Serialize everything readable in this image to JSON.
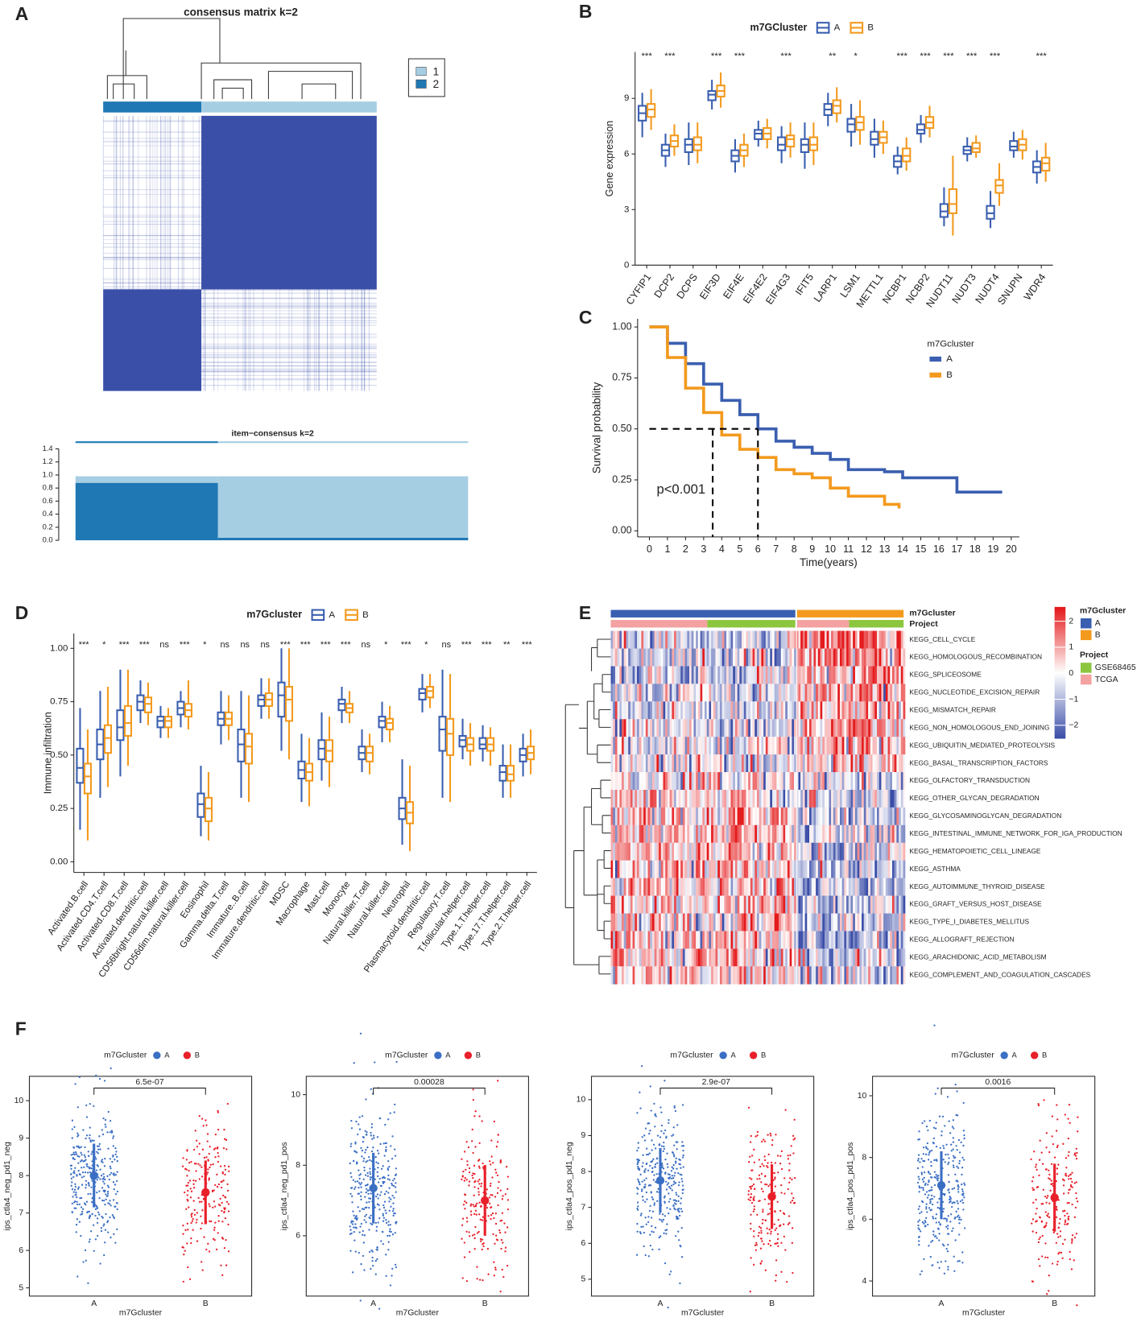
{
  "chart_data": [
    {
      "type": "consensus",
      "panel": "A",
      "title": "consensus matrix k=2",
      "legend": [
        "1",
        "2"
      ],
      "colors": [
        "#a6cee3",
        "#1f78b4"
      ],
      "fill": "#3a4fa8"
    },
    {
      "type": "stacked_bar",
      "title": "item−consensus k=2",
      "categories": [
        null,
        null
      ],
      "series": [
        {
          "color": "#1f78b4",
          "values": [
            0.88,
            0.04
          ]
        },
        {
          "color": "#a6cee3",
          "values": [
            0.1,
            0.94
          ]
        }
      ],
      "ylim": [
        0,
        1.4
      ],
      "yticks": [
        {
          "value": 0,
          "label": "0.0"
        },
        0.2,
        0.4,
        0.6,
        0.8,
        {
          "value": 1,
          "label": "1.0"
        },
        1.2,
        1.4
      ]
    },
    {
      "type": "box",
      "panel": "B",
      "legend_title": "m7GCluster",
      "ylabel": "Gene expression",
      "categories": [
        "CYFIP1",
        "DCP2",
        "DCPS",
        "EIF3D",
        "EIF4E",
        "EIF4E2",
        "EIF4G3",
        "IFIT5",
        "LARP1",
        "LSM1",
        "METTL1",
        "NCBP1",
        "NCBP2",
        "NUDT11",
        "NUDT3",
        "NUDT4",
        "SNUPN",
        "WDR4"
      ],
      "significance": [
        "***",
        "***",
        null,
        "***",
        "***",
        null,
        "***",
        null,
        "**",
        "*",
        null,
        "***",
        "***",
        "***",
        "***",
        "***",
        null,
        "***"
      ],
      "ylim": [
        0,
        11.5
      ],
      "yticks": [
        0,
        3,
        6,
        9
      ],
      "series": [
        {
          "name": "A",
          "color": "#3a5fb0",
          "low": [
            6.9,
            5.3,
            5.4,
            8.4,
            5.0,
            6.4,
            5.5,
            5.2,
            7.5,
            6.4,
            5.8,
            4.9,
            6.6,
            2.1,
            5.6,
            2.0,
            5.8,
            4.4
          ],
          "q1": [
            7.8,
            5.9,
            6.1,
            8.9,
            5.6,
            6.8,
            6.2,
            6.1,
            8.1,
            7.2,
            6.5,
            5.3,
            7.1,
            2.6,
            6.0,
            2.5,
            6.2,
            5.0
          ],
          "median": [
            8.2,
            6.2,
            6.5,
            9.2,
            5.9,
            7.1,
            6.5,
            6.5,
            8.4,
            7.6,
            6.8,
            5.6,
            7.3,
            2.9,
            6.2,
            2.8,
            6.4,
            5.3
          ],
          "q3": [
            8.6,
            6.5,
            6.8,
            9.4,
            6.2,
            7.3,
            6.9,
            6.8,
            8.7,
            7.9,
            7.2,
            5.9,
            7.6,
            3.3,
            6.4,
            3.2,
            6.7,
            5.6
          ],
          "high": [
            9.3,
            7.1,
            7.7,
            10.0,
            6.8,
            7.8,
            7.5,
            7.7,
            9.3,
            8.7,
            7.9,
            6.4,
            8.1,
            4.2,
            6.9,
            4.0,
            7.2,
            6.2
          ]
        },
        {
          "name": "B",
          "color": "#f39a1e",
          "low": [
            7.3,
            5.9,
            5.5,
            8.5,
            5.3,
            6.3,
            5.8,
            5.4,
            7.7,
            6.5,
            6.0,
            5.1,
            6.9,
            1.6,
            5.8,
            3.2,
            5.7,
            4.5
          ],
          "q1": [
            8.0,
            6.4,
            6.2,
            9.1,
            5.9,
            6.8,
            6.4,
            6.2,
            8.2,
            7.3,
            6.6,
            5.6,
            7.4,
            2.8,
            6.1,
            3.9,
            6.2,
            5.1
          ],
          "median": [
            8.4,
            6.7,
            6.5,
            9.4,
            6.2,
            7.1,
            6.8,
            6.5,
            8.6,
            7.7,
            6.9,
            5.9,
            7.7,
            3.3,
            6.3,
            4.3,
            6.5,
            5.5
          ],
          "q3": [
            8.7,
            7.0,
            6.9,
            9.7,
            6.5,
            7.4,
            7.0,
            6.9,
            8.9,
            8.0,
            7.2,
            6.3,
            8.0,
            4.1,
            6.6,
            4.6,
            6.8,
            5.8
          ],
          "high": [
            9.5,
            7.6,
            7.7,
            10.4,
            7.1,
            7.9,
            7.7,
            7.7,
            9.6,
            8.9,
            7.8,
            6.9,
            8.6,
            5.9,
            7.0,
            5.5,
            7.3,
            6.6
          ]
        }
      ]
    },
    {
      "type": "survival",
      "panel": "C",
      "xlabel": "Time(years)",
      "ylabel": "Survival probability",
      "legend_title": "m7Gcluster",
      "annotation": "p<0.001",
      "xlim": [
        -0.65,
        20.45
      ],
      "xticks": [
        0,
        1,
        2,
        3,
        4,
        5,
        6,
        7,
        8,
        9,
        10,
        11,
        12,
        13,
        14,
        15,
        16,
        17,
        18,
        19,
        20
      ],
      "ylim": [
        -0.03,
        1.04
      ],
      "yticks": [
        {
          "value": 0,
          "label": "0.00"
        },
        0.25,
        {
          "value": 0.5,
          "label": "0.50"
        },
        0.75,
        {
          "value": 1,
          "label": "1.00"
        }
      ],
      "median_survival": {
        "y": 0.5,
        "x": [
          3.5,
          6
        ]
      },
      "series": [
        {
          "name": "A",
          "color": "#3a5fb0",
          "x": [
            0,
            1,
            2,
            3,
            4,
            5,
            6,
            7,
            8,
            9,
            10,
            11,
            12,
            13,
            14,
            15,
            16,
            17,
            18,
            19,
            19.5
          ],
          "values": [
            1,
            0.92,
            0.82,
            0.72,
            0.64,
            0.57,
            0.5,
            0.44,
            0.41,
            0.38,
            0.35,
            0.3,
            0.3,
            0.29,
            0.26,
            0.26,
            0.26,
            0.19,
            0.19,
            0.19,
            0.19
          ]
        },
        {
          "name": "B",
          "color": "#f39a1e",
          "x": [
            0,
            1,
            2,
            3,
            4,
            5,
            6,
            7,
            8,
            9,
            10,
            11,
            12,
            13,
            13.8
          ],
          "values": [
            1,
            0.85,
            0.7,
            0.58,
            0.47,
            0.4,
            0.36,
            0.3,
            0.28,
            0.26,
            0.21,
            0.17,
            0.17,
            0.13,
            0.11
          ]
        }
      ]
    },
    {
      "type": "box",
      "panel": "D",
      "legend_title": "m7Gcluster",
      "ylabel": "Immune infiltration",
      "categories": [
        "Activated.B.cell",
        "Activated.CD4.T.cell",
        "Activated.CD8.T.cell",
        "Activated.dendritic.cell",
        "CD56bright.natural.killer.cell",
        "CD56dim.natural.killer.cell",
        "Eosinophil",
        "Gamma.delta.T.cell",
        "Immature..B.cell",
        "Immature.dendritic.cell",
        "MDSC",
        "Macrophage",
        "Mast.cell",
        "Monocyte",
        "Natural.killer.T.cell",
        "Natural.killer.cell",
        "Neutrophil",
        "Plasmacytoid.dendritic.cell",
        "Regulatory.T.cell",
        "T.follicular.helper.cell",
        "Type.1.T.helper.cell",
        "Type.17.T.helper.cell",
        "Type.2.T.helper.cell"
      ],
      "significance": [
        "***",
        "*",
        "***",
        "***",
        "ns",
        "***",
        "*",
        "ns",
        "ns",
        "ns",
        "***",
        "***",
        "***",
        "***",
        "ns",
        "*",
        "***",
        "*",
        "ns",
        "***",
        "***",
        "**",
        "***"
      ],
      "ylim": [
        -0.05,
        1.07
      ],
      "yticks": [
        {
          "value": 0,
          "label": "0.00"
        },
        0.25,
        {
          "value": 0.5,
          "label": "0.50"
        },
        0.75,
        {
          "value": 1,
          "label": "1.00"
        }
      ],
      "series": [
        {
          "name": "A",
          "color": "#3a5fb0",
          "low": [
            0.15,
            0.3,
            0.4,
            0.65,
            0.58,
            0.63,
            0.12,
            0.55,
            0.3,
            0.67,
            0.52,
            0.28,
            0.38,
            0.65,
            0.42,
            0.56,
            0.08,
            0.7,
            0.3,
            0.48,
            0.47,
            0.3,
            0.4
          ],
          "q1": [
            0.37,
            0.48,
            0.57,
            0.71,
            0.63,
            0.69,
            0.21,
            0.64,
            0.47,
            0.73,
            0.68,
            0.39,
            0.48,
            0.71,
            0.48,
            0.63,
            0.2,
            0.76,
            0.52,
            0.54,
            0.53,
            0.38,
            0.47
          ],
          "median": [
            0.44,
            0.55,
            0.63,
            0.75,
            0.66,
            0.72,
            0.27,
            0.67,
            0.55,
            0.76,
            0.78,
            0.43,
            0.53,
            0.74,
            0.51,
            0.66,
            0.25,
            0.79,
            0.62,
            0.57,
            0.55,
            0.42,
            0.5
          ],
          "q3": [
            0.53,
            0.62,
            0.71,
            0.78,
            0.68,
            0.75,
            0.32,
            0.7,
            0.62,
            0.78,
            0.84,
            0.47,
            0.57,
            0.76,
            0.54,
            0.68,
            0.3,
            0.81,
            0.68,
            0.59,
            0.58,
            0.45,
            0.53
          ],
          "high": [
            0.72,
            0.8,
            0.9,
            0.85,
            0.73,
            0.8,
            0.45,
            0.8,
            0.8,
            0.86,
            1.0,
            0.6,
            0.7,
            0.82,
            0.62,
            0.75,
            0.48,
            0.88,
            0.9,
            0.67,
            0.64,
            0.55,
            0.6
          ]
        },
        {
          "name": "B",
          "color": "#f39a1e",
          "low": [
            0.1,
            0.35,
            0.45,
            0.64,
            0.58,
            0.62,
            0.1,
            0.57,
            0.28,
            0.67,
            0.48,
            0.26,
            0.35,
            0.65,
            0.41,
            0.56,
            0.05,
            0.72,
            0.28,
            0.45,
            0.45,
            0.3,
            0.41
          ],
          "q1": [
            0.32,
            0.51,
            0.59,
            0.7,
            0.63,
            0.68,
            0.19,
            0.64,
            0.46,
            0.73,
            0.66,
            0.38,
            0.47,
            0.7,
            0.47,
            0.62,
            0.18,
            0.77,
            0.5,
            0.52,
            0.52,
            0.38,
            0.48
          ],
          "median": [
            0.4,
            0.58,
            0.65,
            0.74,
            0.66,
            0.71,
            0.25,
            0.67,
            0.54,
            0.76,
            0.76,
            0.42,
            0.52,
            0.72,
            0.51,
            0.65,
            0.23,
            0.8,
            0.6,
            0.55,
            0.55,
            0.41,
            0.51
          ],
          "q3": [
            0.46,
            0.64,
            0.73,
            0.77,
            0.68,
            0.74,
            0.3,
            0.7,
            0.6,
            0.79,
            0.82,
            0.46,
            0.57,
            0.74,
            0.54,
            0.67,
            0.28,
            0.82,
            0.67,
            0.58,
            0.58,
            0.45,
            0.54
          ],
          "high": [
            0.62,
            0.82,
            0.9,
            0.84,
            0.72,
            0.85,
            0.42,
            0.78,
            0.78,
            0.86,
            1.0,
            0.58,
            0.68,
            0.8,
            0.6,
            0.73,
            0.45,
            0.88,
            0.88,
            0.65,
            0.63,
            0.55,
            0.62
          ]
        }
      ]
    },
    {
      "type": "heatmap",
      "panel": "E",
      "row_labels": [
        "KEGG_CELL_CYCLE",
        "KEGG_HOMOLOGOUS_RECOMBINATION",
        "KEGG_SPLICEOSOME",
        "KEGG_NUCLEOTIDE_EXCISION_REPAIR",
        "KEGG_MISMATCH_REPAIR",
        "KEGG_NON_HOMOLOGOUS_END_JOINING",
        "KEGG_UBIQUITIN_MEDIATED_PROTEOLYSIS",
        "KEGG_BASAL_TRANSCRIPTION_FACTORS",
        "KEGG_OLFACTORY_TRANSDUCTION",
        "KEGG_OTHER_GLYCAN_DEGRADATION",
        "KEGG_GLYCOSAMINOGLYCAN_DEGRADATION",
        "KEGG_INTESTINAL_IMMUNE_NETWORK_FOR_IGA_PRODUCTION",
        "KEGG_HEMATOPOIETIC_CELL_LINEAGE",
        "KEGG_ASTHMA",
        "KEGG_AUTOIMMUNE_THYROID_DISEASE",
        "KEGG_GRAFT_VERSUS_HOST_DISEASE",
        "KEGG_TYPE_I_DIABETES_MELLITUS",
        "KEGG_ALLOGRAFT_REJECTION",
        "KEGG_ARACHIDONIC_ACID_METABOLISM",
        "KEGG_COMPLEMENT_AND_COAGULATION_CASCADES"
      ],
      "annotation_labels": [
        "m7Gcluster",
        "Project"
      ],
      "values": [
        [
          -0.5,
          1.4
        ],
        [
          -0.4,
          0.9
        ],
        [
          -0.4,
          0.8
        ],
        [
          -0.4,
          0.8
        ],
        [
          -0.4,
          0.8
        ],
        [
          -0.4,
          0.8
        ],
        [
          -0.3,
          0.7
        ],
        [
          -0.3,
          0.7
        ],
        [
          0.3,
          -0.3
        ],
        [
          0.4,
          -0.5
        ],
        [
          0.5,
          -0.6
        ],
        [
          0.6,
          -0.7
        ],
        [
          0.6,
          -0.7
        ],
        [
          0.5,
          -0.6
        ],
        [
          0.6,
          -0.7
        ],
        [
          0.6,
          -0.7
        ],
        [
          0.5,
          -0.6
        ],
        [
          0.6,
          -0.7
        ],
        [
          0.5,
          -0.6
        ],
        [
          0.5,
          -0.6
        ]
      ],
      "scale": {
        "lim": [
          -2.5,
          2.5
        ],
        "ticks": [
          2,
          1,
          0,
          {
            "value": -1,
            "label": "−1"
          },
          {
            "value": -2,
            "label": "−2"
          }
        ],
        "colors": [
          "#3b4ea8",
          "#ffffff",
          "#e41a1c"
        ]
      },
      "cluster_legend": {
        "title": "m7Gcluster",
        "labels": [
          "A",
          "B"
        ],
        "colors": [
          "#3a5fb0",
          "#f39a1e"
        ]
      },
      "project_legend": {
        "title": "Project",
        "labels": [
          "GSE68465",
          "TCGA"
        ],
        "colors": [
          "#8cc63f",
          "#f4a1a1"
        ]
      }
    },
    {
      "type": "strip",
      "panel": "F",
      "legend_title": "m7Gcluster",
      "xlabel": "m7Gcluster",
      "ylabel": "ips_ctla4_neg_pd1_neg",
      "p_label": "6.5e-07",
      "categories": [
        "A",
        "B"
      ],
      "colors": [
        "#3b6fc4",
        "#e8202a"
      ],
      "values": [
        8.0,
        7.55
      ],
      "errors": [
        0.85,
        0.85
      ],
      "ylim": [
        4.78,
        10.65
      ],
      "yticks": [
        5,
        6,
        7,
        8,
        9,
        10
      ]
    },
    {
      "type": "strip",
      "legend_title": "m7Gcluster",
      "xlabel": "m7Gcluster",
      "ylabel": "ips_ctla4_neg_pd1_pos",
      "p_label": "0.00028",
      "categories": [
        "A",
        "B"
      ],
      "colors": [
        "#3b6fc4",
        "#e8202a"
      ],
      "values": [
        7.35,
        7.0
      ],
      "errors": [
        1.0,
        1.0
      ],
      "ylim": [
        4.29,
        10.52
      ],
      "yticks": [
        6,
        8,
        10
      ]
    },
    {
      "type": "strip",
      "legend_title": "m7Gcluster",
      "xlabel": "m7Gcluster",
      "ylabel": "ips_ctla4_pos_pd1_neg",
      "p_label": "2.9e-07",
      "categories": [
        "A",
        "B"
      ],
      "colors": [
        "#3b6fc4",
        "#e8202a"
      ],
      "values": [
        7.75,
        7.3
      ],
      "errors": [
        0.9,
        0.9
      ],
      "ylim": [
        4.53,
        10.65
      ],
      "yticks": [
        5,
        6,
        7,
        8,
        9,
        10
      ]
    },
    {
      "type": "strip",
      "legend_title": "m7Gcluster",
      "xlabel": "m7Gcluster",
      "ylabel": "ips_ctla4_pos_pd1_pos",
      "p_label": "0.0016",
      "categories": [
        "A",
        "B"
      ],
      "colors": [
        "#3b6fc4",
        "#e8202a"
      ],
      "values": [
        7.1,
        6.7
      ],
      "errors": [
        1.1,
        1.1
      ],
      "ylim": [
        3.51,
        10.63
      ],
      "yticks": [
        4,
        6,
        8,
        10
      ]
    }
  ]
}
